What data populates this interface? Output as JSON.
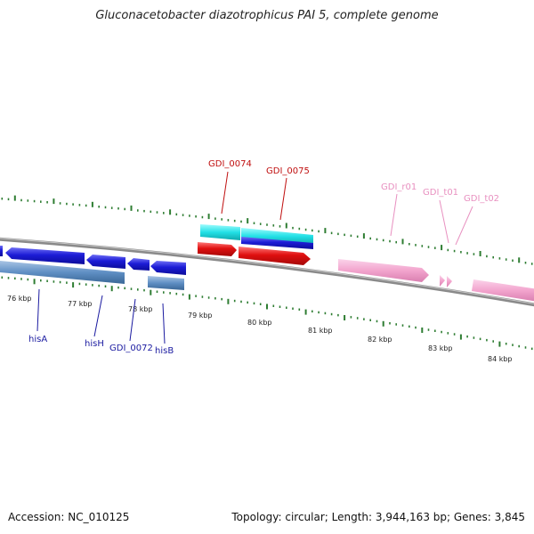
{
  "title": "Gluconacetobacter diazotrophicus PAI 5, complete genome",
  "footer": {
    "accession": "Accession: NC_010125",
    "summary": "Topology: circular; Length: 3,944,163 bp; Genes: 3,845"
  },
  "colors": {
    "backbone": "#8a8a8a",
    "tick": "#2e7d32",
    "cds_blue": "#1c1cd6",
    "gene_steelblue": "#5f8fc4",
    "gene_cyan": "#22e0e6",
    "cds_red": "#e01010",
    "rna_pink": "#f2a4cd",
    "label_blue": "#1a1aa0",
    "label_red": "#c01010",
    "label_pink": "#e890c0"
  },
  "ruler": {
    "labels": [
      "76 kbp",
      "77 kbp",
      "78 kbp",
      "79 kbp",
      "80 kbp",
      "81 kbp",
      "82 kbp",
      "83 kbp",
      "84 kbp"
    ]
  },
  "features": [
    {
      "id": "hisA",
      "label": "hisA",
      "group": "blue"
    },
    {
      "id": "hisH",
      "label": "hisH",
      "group": "blue"
    },
    {
      "id": "GDI_0072",
      "label": "GDI_0072",
      "group": "blue"
    },
    {
      "id": "hisB",
      "label": "hisB",
      "group": "blue"
    },
    {
      "id": "GDI_0074",
      "label": "GDI_0074",
      "group": "red"
    },
    {
      "id": "GDI_0075",
      "label": "GDI_0075",
      "group": "red"
    },
    {
      "id": "GDI_r01",
      "label": "GDI_r01",
      "group": "pink"
    },
    {
      "id": "GDI_t01",
      "label": "GDI_t01",
      "group": "pink"
    },
    {
      "id": "GDI_t02",
      "label": "GDI_t02",
      "group": "pink"
    }
  ]
}
